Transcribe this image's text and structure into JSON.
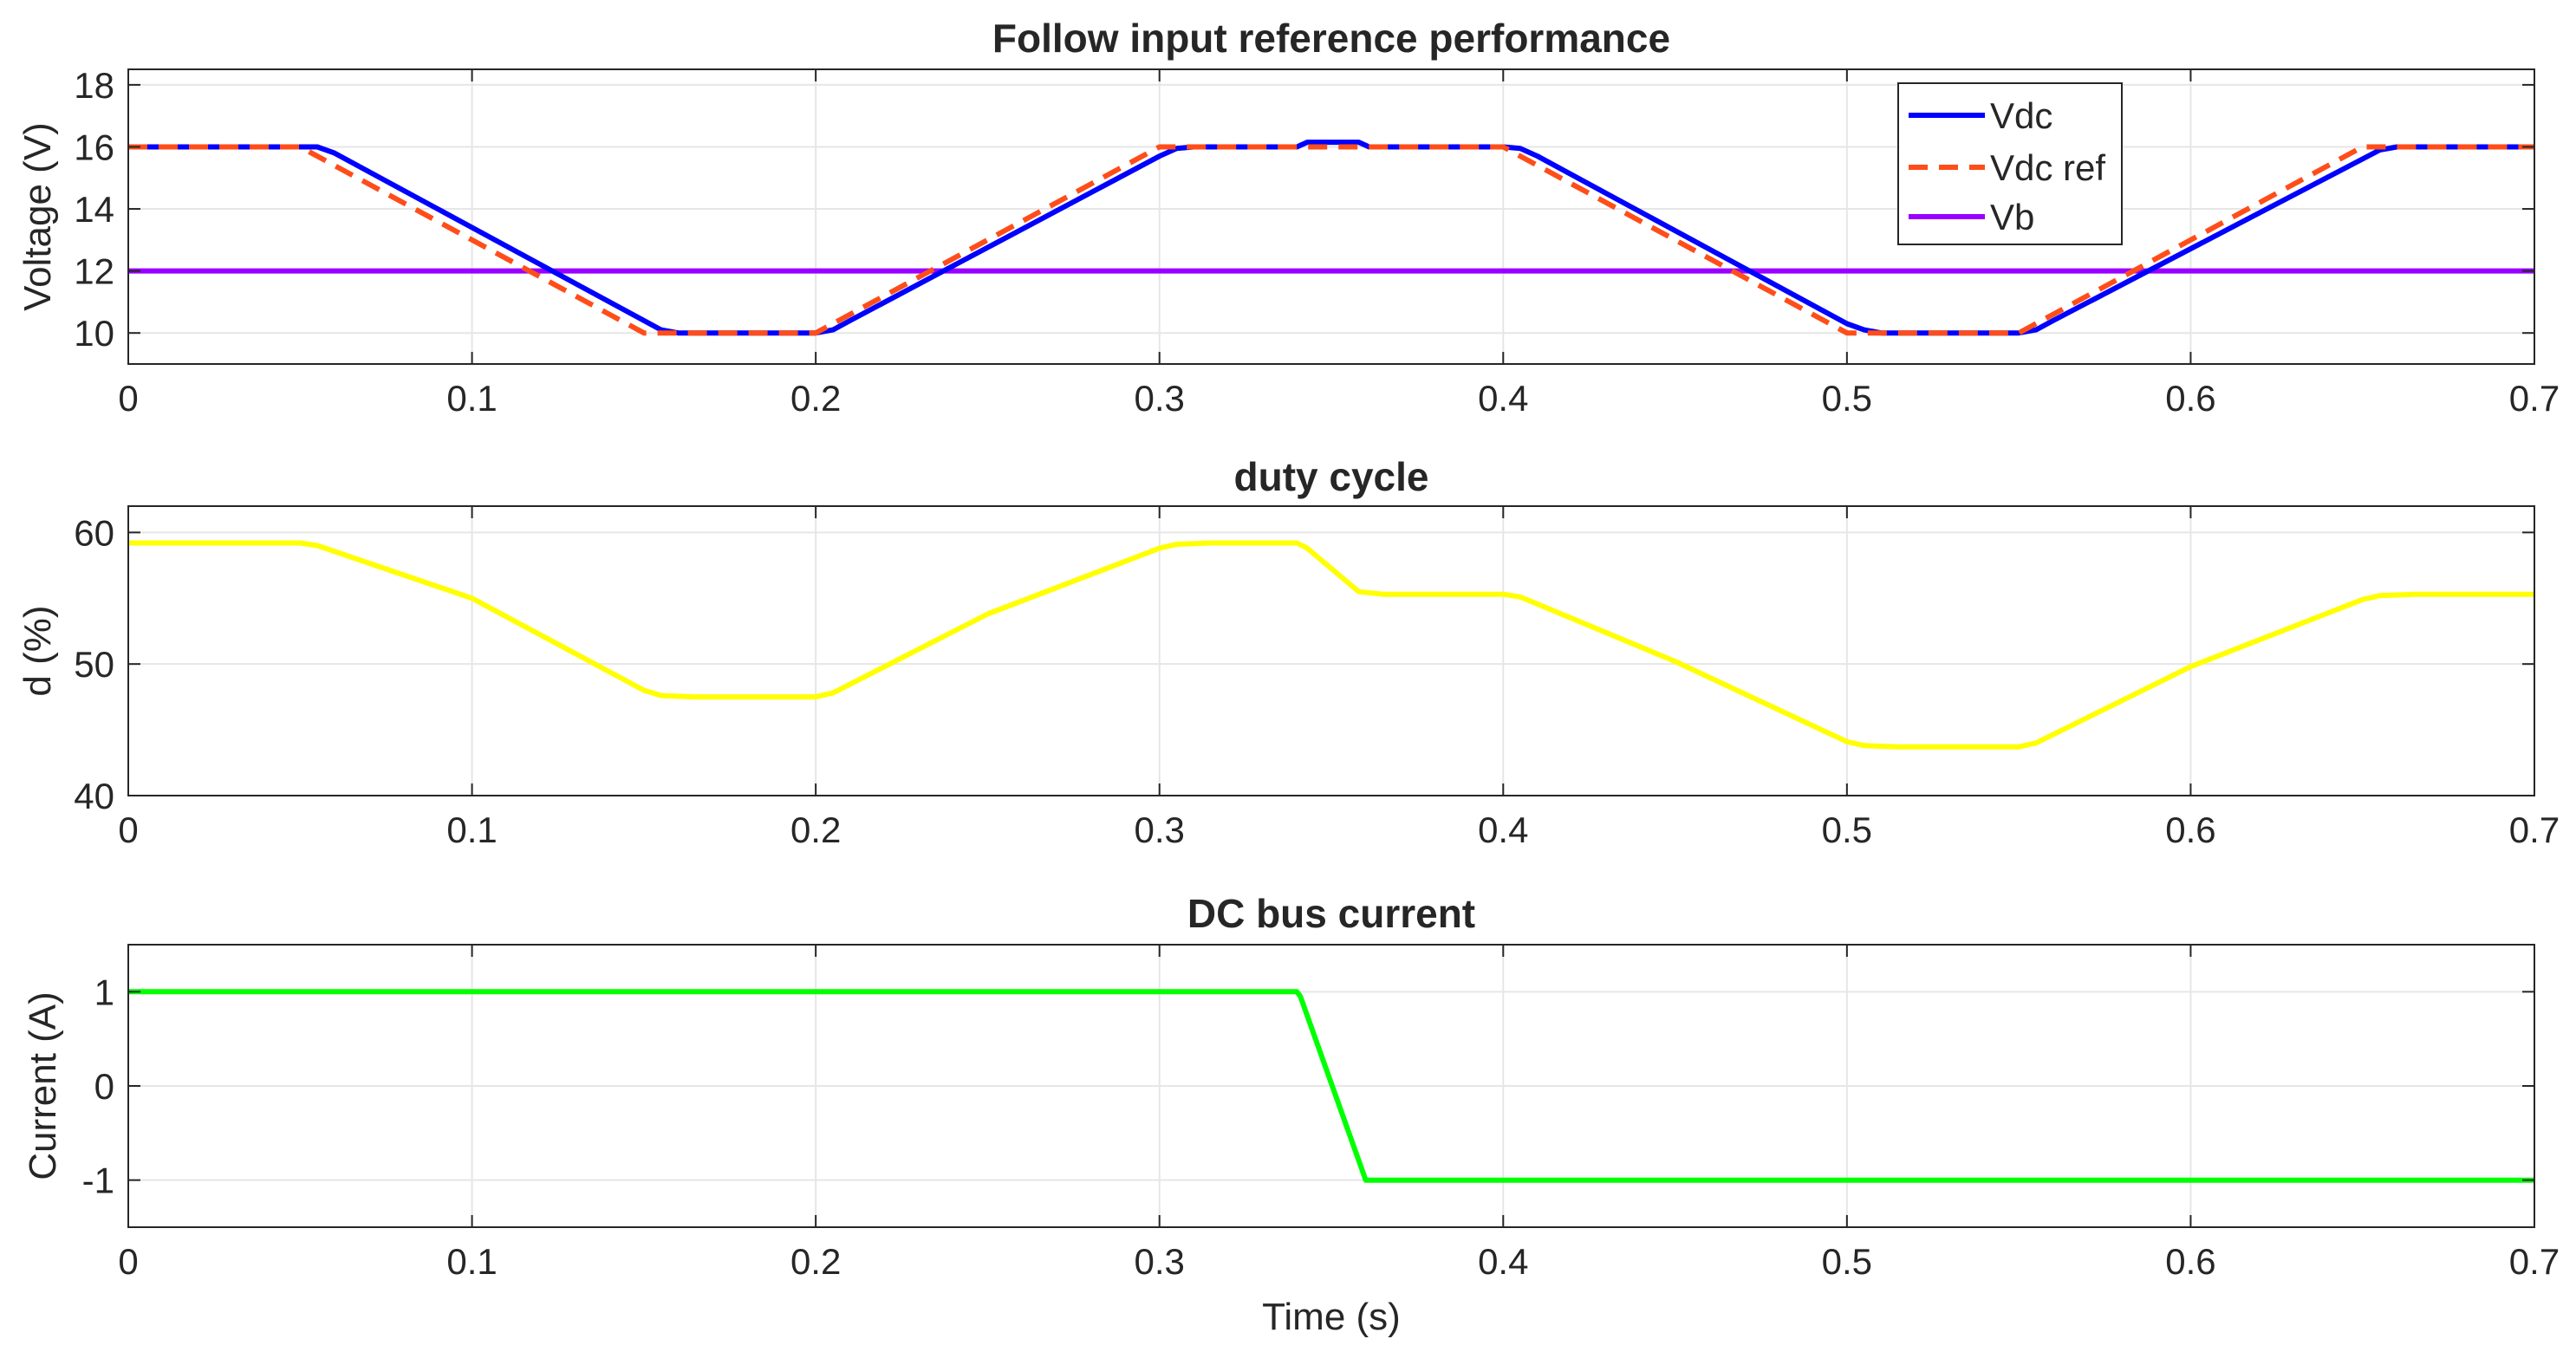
{
  "chart_data": [
    {
      "type": "line",
      "title": "Follow input reference performance",
      "xlabel": "",
      "ylabel": "Voltage (V)",
      "xlim": [
        0,
        0.7
      ],
      "ylim": [
        9,
        18.5
      ],
      "xticks": [
        0,
        0.1,
        0.2,
        0.3,
        0.4,
        0.5,
        0.6,
        0.7
      ],
      "xtick_labels": [
        "0",
        "0.1",
        "0.2",
        "0.3",
        "0.4",
        "0.5",
        "0.6",
        "0.7"
      ],
      "yticks": [
        10,
        12,
        14,
        16,
        18
      ],
      "ytick_labels": [
        "10",
        "12",
        "14",
        "16",
        "18"
      ],
      "grid": true,
      "legend": "top-right",
      "series": [
        {
          "name": "Vdc",
          "color": "#0000ff",
          "style": "solid",
          "x": [
            0,
            0.05,
            0.055,
            0.06,
            0.15,
            0.155,
            0.16,
            0.2,
            0.205,
            0.21,
            0.3,
            0.305,
            0.31,
            0.34,
            0.343,
            0.358,
            0.361,
            0.4,
            0.405,
            0.41,
            0.5,
            0.505,
            0.51,
            0.55,
            0.555,
            0.56,
            0.655,
            0.66,
            0.7
          ],
          "y": [
            16,
            16,
            16,
            15.8,
            10.4,
            10.1,
            10,
            10,
            10.1,
            10.4,
            15.7,
            15.95,
            16,
            16,
            16.15,
            16.15,
            16,
            16,
            15.95,
            15.7,
            10.3,
            10.1,
            10,
            10,
            10.1,
            10.4,
            15.9,
            16,
            16
          ]
        },
        {
          "name": "Vdc ref",
          "color": "#ff4d1a",
          "style": "dashed",
          "x": [
            0,
            0.05,
            0.15,
            0.2,
            0.3,
            0.4,
            0.5,
            0.55,
            0.65,
            0.7
          ],
          "y": [
            16,
            16,
            10,
            10,
            16,
            16,
            10,
            10,
            16,
            16
          ]
        },
        {
          "name": "Vb",
          "color": "#9900ff",
          "style": "solid",
          "x": [
            0,
            0.7
          ],
          "y": [
            12,
            12
          ]
        }
      ]
    },
    {
      "type": "line",
      "title": "duty cycle",
      "xlabel": "",
      "ylabel": "d (%)",
      "xlim": [
        0,
        0.7
      ],
      "ylim": [
        40,
        62
      ],
      "xticks": [
        0,
        0.1,
        0.2,
        0.3,
        0.4,
        0.5,
        0.6,
        0.7
      ],
      "xtick_labels": [
        "0",
        "0.1",
        "0.2",
        "0.3",
        "0.4",
        "0.5",
        "0.6",
        "0.7"
      ],
      "yticks": [
        40,
        50,
        60
      ],
      "ytick_labels": [
        "40",
        "50",
        "60"
      ],
      "grid": true,
      "series": [
        {
          "name": "d",
          "color": "#ffff00",
          "style": "solid",
          "x": [
            0,
            0.05,
            0.055,
            0.1,
            0.15,
            0.155,
            0.165,
            0.2,
            0.205,
            0.25,
            0.3,
            0.305,
            0.315,
            0.34,
            0.343,
            0.358,
            0.365,
            0.4,
            0.405,
            0.45,
            0.5,
            0.505,
            0.515,
            0.55,
            0.555,
            0.6,
            0.65,
            0.655,
            0.665,
            0.7
          ],
          "y": [
            59.2,
            59.2,
            59.0,
            55.0,
            48.0,
            47.6,
            47.5,
            47.5,
            47.8,
            53.8,
            58.8,
            59.1,
            59.2,
            59.2,
            58.8,
            55.5,
            55.3,
            55.3,
            55.1,
            50.2,
            44.1,
            43.8,
            43.7,
            43.7,
            44.0,
            49.8,
            54.9,
            55.2,
            55.3,
            55.3
          ]
        }
      ]
    },
    {
      "type": "line",
      "title": "DC bus current",
      "xlabel": "Time (s)",
      "ylabel": "Current (A)",
      "xlim": [
        0,
        0.7
      ],
      "ylim": [
        -1.5,
        1.5
      ],
      "xticks": [
        0,
        0.1,
        0.2,
        0.3,
        0.4,
        0.5,
        0.6,
        0.7
      ],
      "xtick_labels": [
        "0",
        "0.1",
        "0.2",
        "0.3",
        "0.4",
        "0.5",
        "0.6",
        "0.7"
      ],
      "yticks": [
        -1,
        0,
        1
      ],
      "ytick_labels": [
        "-1",
        "0",
        "1"
      ],
      "grid": true,
      "series": [
        {
          "name": "Current",
          "color": "#00ff00",
          "style": "solid",
          "x": [
            0,
            0.34,
            0.341,
            0.36,
            0.7
          ],
          "y": [
            1,
            1,
            0.95,
            -1,
            -1
          ]
        }
      ]
    }
  ]
}
